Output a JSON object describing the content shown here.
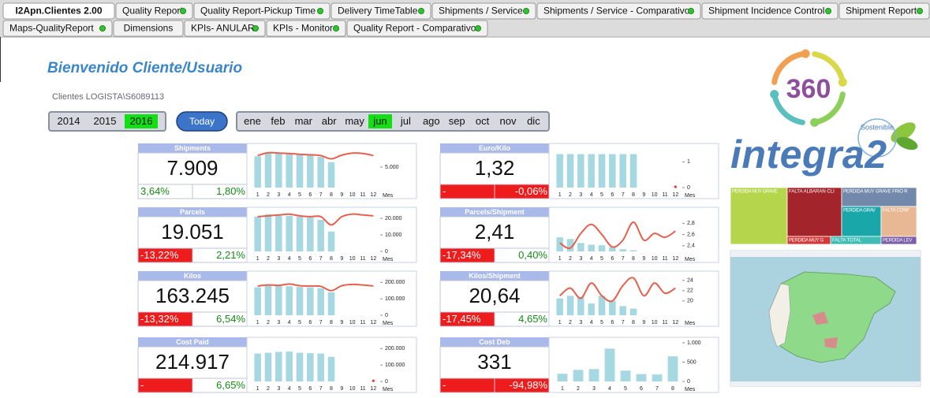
{
  "tabs_row1": [
    {
      "label": "I2Apn.Clientes 2.00",
      "active": true,
      "dot": false
    },
    {
      "label": "Quality Report",
      "dot": true
    },
    {
      "label": "Quality Report-Pickup Time",
      "dot": true
    },
    {
      "label": "Delivery TimeTable",
      "dot": true
    },
    {
      "label": "Shipments / Service",
      "dot": true
    },
    {
      "label": "Shipments / Service - Comparativo",
      "dot": true
    },
    {
      "label": "Shipment Incidence Control",
      "dot": true
    },
    {
      "label": "Shipment Report",
      "dot": true
    }
  ],
  "tabs_row2": [
    {
      "label": "Maps-QualityReport",
      "dot": true
    },
    {
      "label": "Dimensions",
      "dot": false
    },
    {
      "label": "KPIs- ANULAR",
      "dot": true
    },
    {
      "label": "KPIs - Monitor",
      "dot": true
    },
    {
      "label": "Quality Report - Comparativo",
      "dot": true
    }
  ],
  "welcome": "Bienvenido Cliente/Usuario",
  "user": "Clientes LOGISTA\\S6089113",
  "years": [
    {
      "label": 2014
    },
    {
      "label": 2015
    },
    {
      "label": 2016,
      "selected": true
    }
  ],
  "today_button": "Today",
  "months": [
    {
      "label": "ene"
    },
    {
      "label": "feb"
    },
    {
      "label": "mar"
    },
    {
      "label": "abr"
    },
    {
      "label": "may"
    },
    {
      "label": "jun",
      "selected": true
    },
    {
      "label": "jul"
    },
    {
      "label": "ago"
    },
    {
      "label": "sep"
    },
    {
      "label": "oct"
    },
    {
      "label": "nov"
    },
    {
      "label": "dic"
    }
  ],
  "kpis": [
    {
      "title": "Shipments",
      "value": "7.909",
      "change1": {
        "text": "3,64%",
        "color": "green"
      },
      "change2": {
        "text": "1,80%",
        "color": "green"
      },
      "chart": {
        "categories": [
          1,
          2,
          3,
          4,
          5,
          6,
          7,
          8,
          9,
          10,
          11,
          12
        ],
        "x_label": "Mes",
        "ylim": [
          0,
          9600
        ],
        "yticks": [
          {
            "value": 5000,
            "label": "5.000"
          }
        ],
        "bars": [
          7600,
          8500,
          8400,
          8300,
          8000,
          7900,
          7500,
          6200,
          null,
          null,
          null,
          null
        ],
        "line": [
          7800,
          8500,
          8400,
          8300,
          8100,
          8000,
          7800,
          7000,
          7900,
          8400,
          8300,
          7800
        ]
      }
    },
    {
      "title": "Parcels",
      "value": "19.051",
      "change1": {
        "text": "-13,22%",
        "color": "red"
      },
      "change2": {
        "text": "2,21%",
        "color": "green"
      },
      "chart": {
        "categories": [
          1,
          2,
          3,
          4,
          5,
          6,
          7,
          8,
          9,
          10,
          11,
          12
        ],
        "x_label": "Mes",
        "ylim": [
          0,
          23800
        ],
        "yticks": [
          {
            "value": 20000,
            "label": "20.000"
          },
          {
            "value": 10000,
            "label": "10.000"
          },
          0
        ],
        "bars": [
          21000,
          22500,
          22000,
          21500,
          21000,
          20500,
          19000,
          12000,
          null,
          null,
          null,
          null
        ],
        "line": [
          21000,
          21500,
          22000,
          22500,
          21500,
          21000,
          21000,
          16000,
          21000,
          22500,
          22000,
          21500
        ]
      }
    },
    {
      "title": "Kilos",
      "value": "163.245",
      "change1": {
        "text": "-13,32%",
        "color": "red"
      },
      "change2": {
        "text": "6,54%",
        "color": "green"
      },
      "chart": {
        "categories": [
          1,
          2,
          3,
          4,
          5,
          6,
          7,
          8,
          9,
          10,
          11,
          12
        ],
        "x_label": "Mes",
        "ylim": [
          0,
          240000
        ],
        "yticks": [
          {
            "value": 200000,
            "label": "200.000"
          },
          {
            "value": 100000,
            "label": "100.000"
          },
          0
        ],
        "bars": [
          170000,
          180000,
          178000,
          176000,
          172000,
          170000,
          165000,
          140000,
          null,
          null,
          null,
          null
        ],
        "line": [
          178000,
          185000,
          182000,
          190000,
          180000,
          178000,
          176000,
          150000,
          180000,
          188000,
          184000,
          178000
        ]
      }
    },
    {
      "title": "Cost Paid",
      "value": "214.917",
      "change1": {
        "text": "-",
        "color": "red"
      },
      "change2": {
        "text": "6,65%",
        "color": "green"
      },
      "chart": {
        "categories": [
          1,
          2,
          3,
          4,
          5,
          6,
          7,
          8,
          9,
          10,
          11,
          12
        ],
        "x_label": "Mes",
        "ylim": [
          0,
          240000
        ],
        "yticks": [
          {
            "value": 200000,
            "label": "200.000"
          },
          {
            "value": 100000,
            "label": "100.000"
          },
          0
        ],
        "bars": [
          170000,
          175000,
          180000,
          182000,
          175000,
          172000,
          170000,
          150000,
          null,
          null,
          null,
          null
        ],
        "dot": 4000
      }
    },
    {
      "title": "Euro/Kilo",
      "value": "1,32",
      "change1": {
        "text": "-",
        "color": "red"
      },
      "change2": {
        "text": "-0,06%",
        "color": "red"
      },
      "chart": {
        "categories": [
          1,
          2,
          3,
          4,
          5,
          6,
          7,
          8,
          9,
          10,
          11,
          12
        ],
        "x_label": "Mes",
        "ylim": [
          0,
          1.53
        ],
        "yticks": [
          1,
          0
        ],
        "bars": [
          1.3,
          1.3,
          1.3,
          1.3,
          1.3,
          1.3,
          1.3,
          1.3,
          null,
          null,
          null,
          null
        ],
        "dot": 0.03
      }
    },
    {
      "title": "Parcels/Shipment",
      "value": "2,41",
      "change1": {
        "text": "-17,34%",
        "color": "red"
      },
      "change2": {
        "text": "0,40%",
        "color": "green"
      },
      "chart": {
        "categories": [
          1,
          2,
          3,
          4,
          5,
          6,
          7,
          8,
          9,
          10,
          11,
          12
        ],
        "x_label": "Mes",
        "ylim": [
          2.3,
          3.0
        ],
        "yticks": [
          {
            "value": 2.8,
            "label": "2,8"
          },
          {
            "value": 2.6,
            "label": "2,6"
          },
          {
            "value": 2.4,
            "label": "2,4"
          }
        ],
        "bars": [
          2.55,
          2.52,
          2.45,
          2.42,
          2.41,
          2.38,
          2.34,
          2.32,
          null,
          null,
          null,
          null
        ],
        "line": [
          2.45,
          2.36,
          2.62,
          2.78,
          2.6,
          2.38,
          2.5,
          2.82,
          2.5,
          2.62,
          2.55,
          2.66
        ]
      }
    },
    {
      "title": "Kilos/Shipment",
      "value": "20,64",
      "change1": {
        "text": "-17,45%",
        "color": "red"
      },
      "change2": {
        "text": "4,65%",
        "color": "green"
      },
      "chart": {
        "categories": [
          1,
          2,
          3,
          4,
          5,
          6,
          7,
          8,
          9,
          10,
          11,
          12
        ],
        "x_label": "Mes",
        "ylim": [
          17.2,
          24.9
        ],
        "yticks": [
          24,
          22,
          20
        ],
        "bars": [
          20.5,
          21,
          20.8,
          19.5,
          21,
          20,
          19,
          18.5,
          null,
          null,
          null,
          null
        ],
        "line": [
          21,
          22.5,
          20.5,
          23.5,
          21,
          20,
          23,
          24.5,
          21,
          23.5,
          21.5,
          22.5
        ]
      }
    },
    {
      "title": "Cost Deb",
      "value": "331",
      "change1": {
        "text": "-",
        "color": "red"
      },
      "change2": {
        "text": "-94,98%",
        "color": "red"
      },
      "chart": {
        "categories": [
          1,
          2,
          3,
          4,
          5,
          6,
          7,
          8
        ],
        "x_label": "Mes",
        "ylim": [
          0,
          1020
        ],
        "yticks": [
          {
            "value": 1000,
            "label": "1.000"
          },
          500,
          0
        ],
        "bars": [
          200,
          300,
          320,
          850,
          280,
          190,
          180,
          650
        ]
      }
    }
  ],
  "logo": {
    "number": "360",
    "brand": "integra2",
    "tagline": "Sostenible"
  },
  "treemap": [
    {
      "label": "PERDIDA MUY GRAVE",
      "color": "#b5d64c"
    },
    {
      "label": "FALTA ALBARAN CLI",
      "color": "#a3242a"
    },
    {
      "label": "PERDIDA MUY G",
      "color": "#d23a3a"
    },
    {
      "label": "PERDIDA MUY GRAVE FRIO R",
      "color": "#7389ab"
    },
    {
      "label": "PERDIDA GRAV",
      "color": "#1aa7a9"
    },
    {
      "label": "FALTA CONF",
      "color": "#e7b893"
    },
    {
      "label": "FALTA TOTAL",
      "color": "#3fbcb4"
    },
    {
      "label": "PERDIDA LEV",
      "color": "#7d5fa8"
    }
  ]
}
